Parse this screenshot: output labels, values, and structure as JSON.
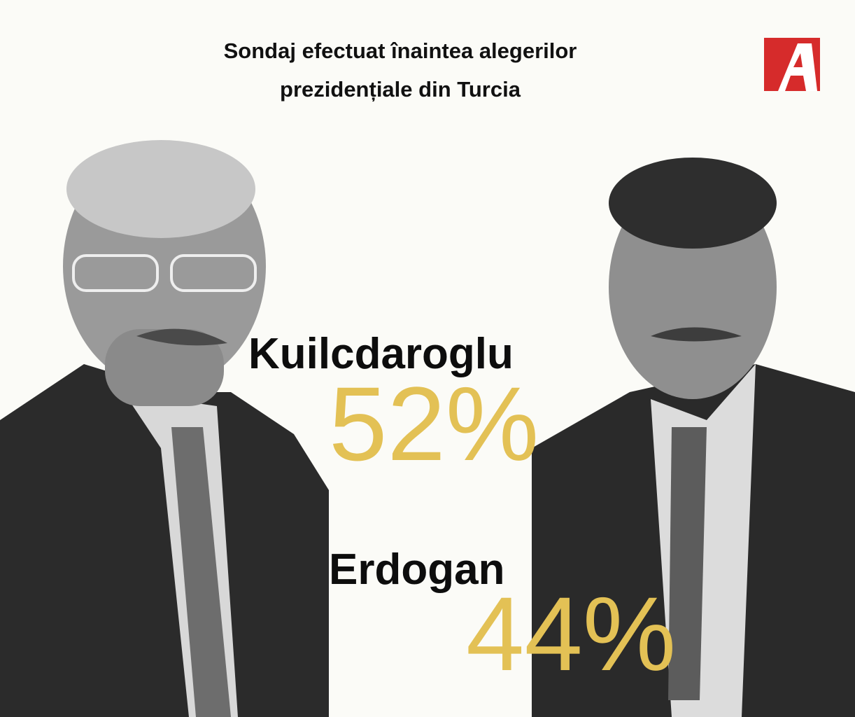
{
  "header": {
    "title_lines": [
      "Sondaj efectuat înaintea alegerilor",
      "prezidențiale din Turcia"
    ]
  },
  "candidates": [
    {
      "name": "Kuilcdaroglu",
      "percent": "52%"
    },
    {
      "name": "Erdogan",
      "percent": "44%"
    }
  ]
}
